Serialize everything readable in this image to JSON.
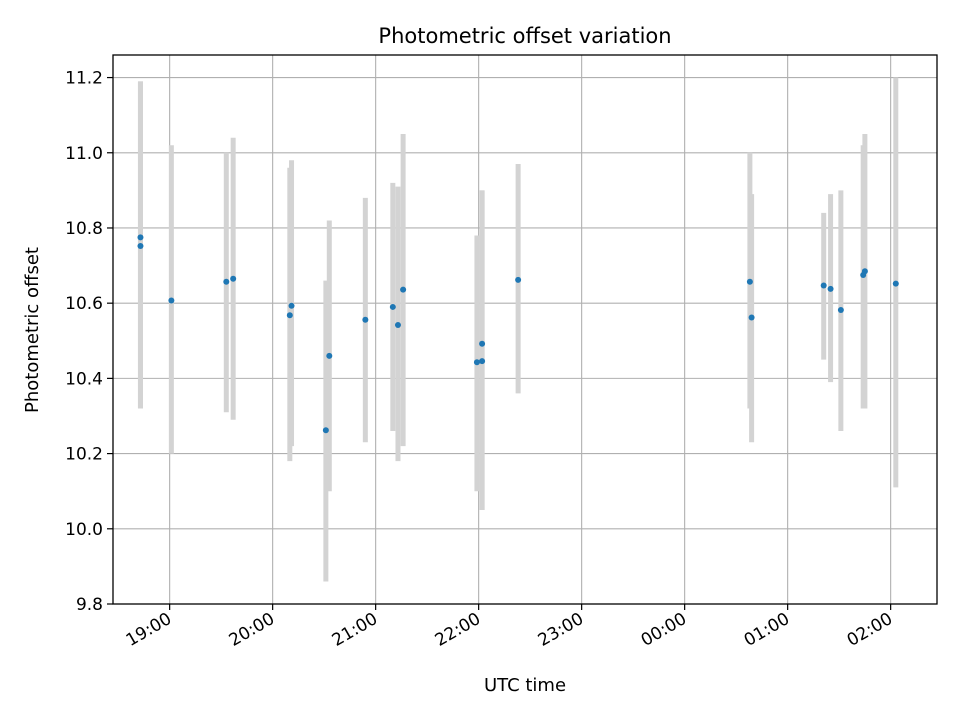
{
  "chart_data": {
    "type": "scatter",
    "title": "Photometric offset variation",
    "xlabel": "UTC time",
    "ylabel": "Photometric offset",
    "x_axis": "time",
    "xlim": [
      "18:27",
      "02:27"
    ],
    "ylim": [
      9.8,
      11.26
    ],
    "grid": true,
    "x_tick_labels": [
      "19:00",
      "20:00",
      "21:00",
      "22:00",
      "23:00",
      "00:00",
      "01:00",
      "02:00"
    ],
    "x_tick_values": [
      "19:00",
      "20:00",
      "21:00",
      "22:00",
      "23:00",
      "00:00",
      "01:00",
      "02:00"
    ],
    "y_ticks": [
      9.8,
      10.0,
      10.2,
      10.4,
      10.6,
      10.8,
      11.0,
      11.2
    ],
    "y_tick_labels": [
      "9.8",
      "10.0",
      "10.2",
      "10.4",
      "10.6",
      "10.8",
      "11.0",
      "11.2"
    ],
    "colors": {
      "points": "#1f77b4",
      "errorbars": "#d3d3d3",
      "grid": "#b0b0b0"
    },
    "series": [
      {
        "points": [
          {
            "x": "18:43",
            "y": 10.775,
            "ylow": 10.32,
            "yhigh": 11.19
          },
          {
            "x": "18:43",
            "y": 10.752,
            "ylow": 10.32,
            "yhigh": 11.19
          },
          {
            "x": "19:01",
            "y": 10.607,
            "ylow": 10.2,
            "yhigh": 11.02
          },
          {
            "x": "19:33",
            "y": 10.657,
            "ylow": 10.31,
            "yhigh": 11.0
          },
          {
            "x": "19:37",
            "y": 10.665,
            "ylow": 10.29,
            "yhigh": 11.04
          },
          {
            "x": "20:10",
            "y": 10.568,
            "ylow": 10.18,
            "yhigh": 10.96
          },
          {
            "x": "20:11",
            "y": 10.593,
            "ylow": 10.22,
            "yhigh": 10.98
          },
          {
            "x": "20:31",
            "y": 10.262,
            "ylow": 9.86,
            "yhigh": 10.66
          },
          {
            "x": "20:33",
            "y": 10.46,
            "ylow": 10.1,
            "yhigh": 10.82
          },
          {
            "x": "20:54",
            "y": 10.556,
            "ylow": 10.23,
            "yhigh": 10.88
          },
          {
            "x": "21:10",
            "y": 10.59,
            "ylow": 10.26,
            "yhigh": 10.92
          },
          {
            "x": "21:13",
            "y": 10.542,
            "ylow": 10.18,
            "yhigh": 10.91
          },
          {
            "x": "21:16",
            "y": 10.636,
            "ylow": 10.22,
            "yhigh": 11.05
          },
          {
            "x": "21:59",
            "y": 10.443,
            "ylow": 10.1,
            "yhigh": 10.78
          },
          {
            "x": "22:02",
            "y": 10.446,
            "ylow": 10.05,
            "yhigh": 10.9
          },
          {
            "x": "22:02",
            "y": 10.492,
            "ylow": 10.05,
            "yhigh": 10.9
          },
          {
            "x": "22:23",
            "y": 10.662,
            "ylow": 10.36,
            "yhigh": 10.97
          },
          {
            "x": "00:38",
            "y": 10.657,
            "ylow": 10.32,
            "yhigh": 11.0
          },
          {
            "x": "00:39",
            "y": 10.562,
            "ylow": 10.23,
            "yhigh": 10.89
          },
          {
            "x": "01:21",
            "y": 10.647,
            "ylow": 10.45,
            "yhigh": 10.84
          },
          {
            "x": "01:25",
            "y": 10.638,
            "ylow": 10.39,
            "yhigh": 10.89
          },
          {
            "x": "01:31",
            "y": 10.582,
            "ylow": 10.26,
            "yhigh": 10.9
          },
          {
            "x": "01:44",
            "y": 10.675,
            "ylow": 10.32,
            "yhigh": 11.02
          },
          {
            "x": "01:45",
            "y": 10.685,
            "ylow": 10.32,
            "yhigh": 11.05
          },
          {
            "x": "02:03",
            "y": 10.652,
            "ylow": 10.11,
            "yhigh": 11.2
          }
        ]
      }
    ]
  }
}
